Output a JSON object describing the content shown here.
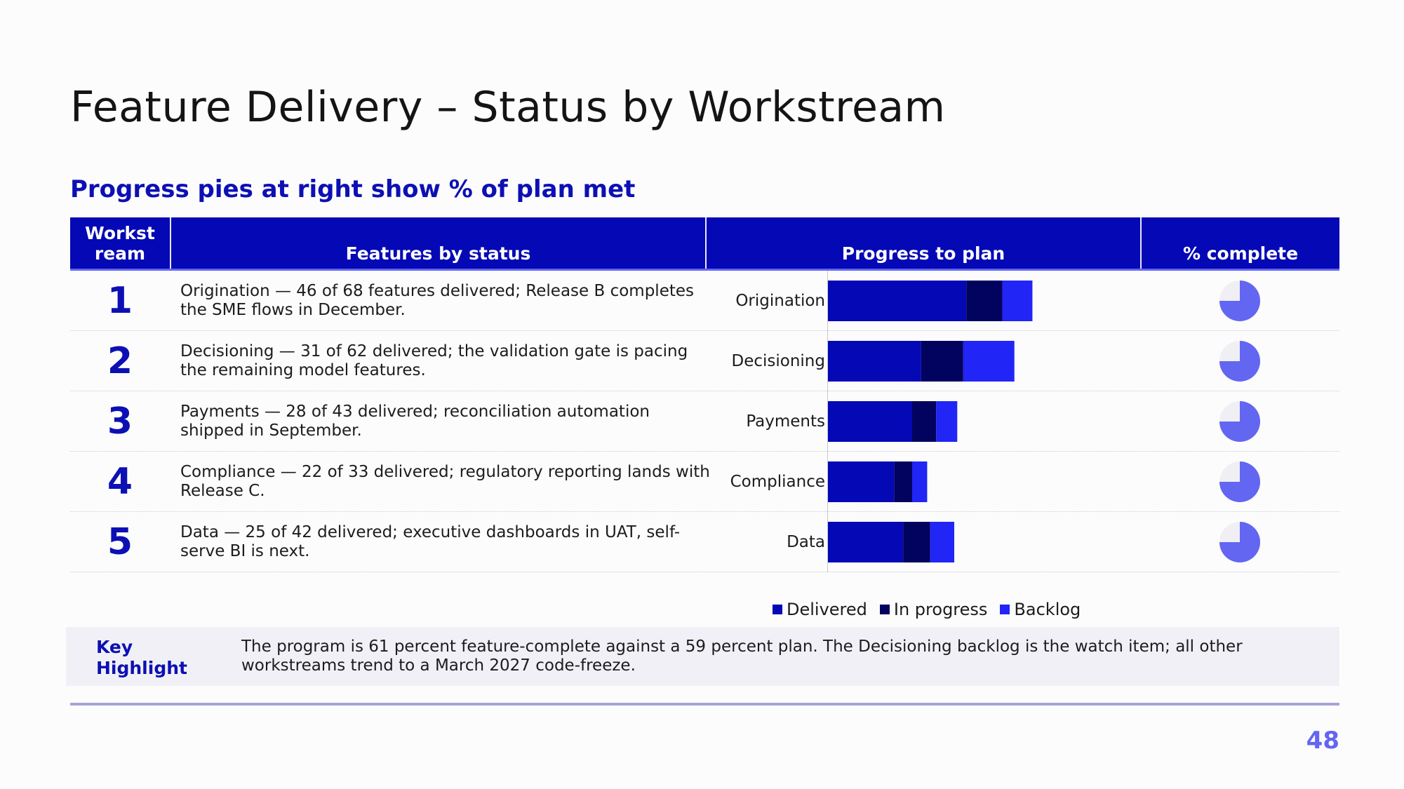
{
  "title": "Feature Delivery – Status by Workstream",
  "subtitle": "Progress pies at right show % of plan met",
  "table": {
    "headers": [
      "Workst ream",
      "Features by status",
      "Progress to plan",
      "% complete"
    ],
    "rows": [
      {
        "number": "1",
        "description": "Origination — 46 of 68 features delivered; Release B completes the SME flows in December."
      },
      {
        "number": "2",
        "description": "Decisioning — 31 of 62 delivered; the validation gate is pacing the remaining model features."
      },
      {
        "number": "3",
        "description": "Payments — 28 of 43 delivered; reconciliation automation shipped in September."
      },
      {
        "number": "4",
        "description": "Compliance — 22 of 33 delivered; regulatory reporting lands with Release C."
      },
      {
        "number": "5",
        "description": "Data — 25 of 42 delivered; executive dashboards in UAT, self-serve BI is next."
      }
    ]
  },
  "chart_data": [
    {
      "type": "bar",
      "orientation": "horizontal",
      "stacked": true,
      "categories": [
        "Origination",
        "Decisioning",
        "Payments",
        "Compliance",
        "Data"
      ],
      "series": [
        {
          "name": "Delivered",
          "values": [
            46,
            31,
            28,
            22,
            25
          ],
          "color": "#0508b5"
        },
        {
          "name": "In progress",
          "values": [
            12,
            14,
            8,
            6,
            9
          ],
          "color": "#02035e"
        },
        {
          "name": "Backlog",
          "values": [
            10,
            17,
            7,
            5,
            8
          ],
          "color": "#2125f5"
        }
      ],
      "xlim": [
        0,
        112
      ],
      "grid": false,
      "legend": "bottom"
    },
    {
      "type": "pie",
      "categories": [
        "Origination",
        "Decisioning",
        "Payments",
        "Compliance",
        "Data"
      ],
      "values": [
        0.75,
        0.75,
        0.75,
        0.75,
        0.75
      ],
      "color": "#6366f1",
      "remainder_color": "#efeff4"
    }
  ],
  "key_highlight": {
    "label": "Key Highlight",
    "text": "The program is 61 percent feature-complete against a 59 percent plan. The Decisioning backlog is the watch item; all other workstreams trend to a March 2027 code-freeze."
  },
  "page_number": "48"
}
